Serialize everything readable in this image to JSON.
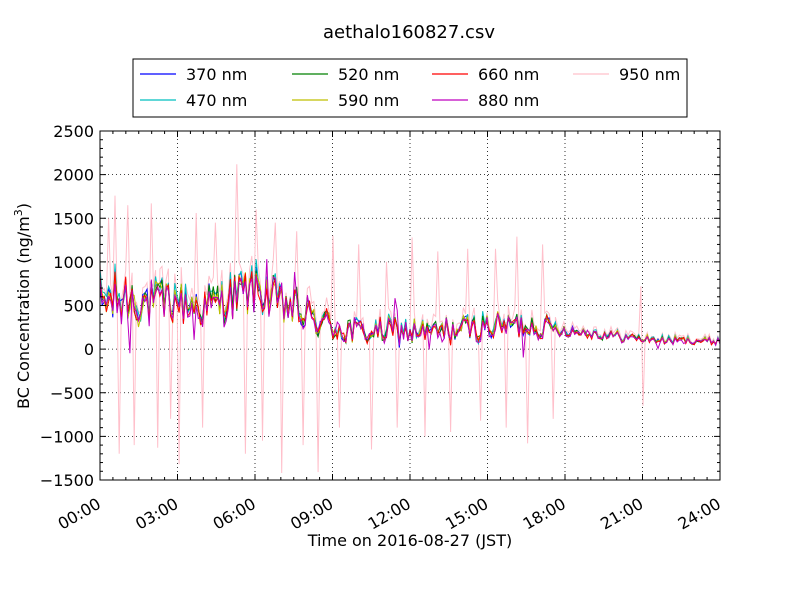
{
  "chart_data": {
    "type": "line",
    "title": "aethalo160827.csv",
    "xlabel": "Time on 2016-08-27 (JST)",
    "ylabel_main": "BC Concentration (ng/m",
    "ylabel_sup": "3",
    "ylabel_close": ")",
    "xlim": [
      "00:00",
      "24:00"
    ],
    "ylim": [
      -1500,
      2500
    ],
    "grid": true,
    "legend_placement": "top-center",
    "x_ticks": [
      "00:00",
      "03:00",
      "06:00",
      "09:00",
      "12:00",
      "15:00",
      "18:00",
      "21:00",
      "24:00"
    ],
    "y_ticks": [
      "2500",
      "2000",
      "1500",
      "1000",
      "500",
      "0",
      "−500",
      "−1000",
      "−1500"
    ],
    "series": [
      {
        "name": "370 nm",
        "color": "#0000ff"
      },
      {
        "name": "470 nm",
        "color": "#00bfbf"
      },
      {
        "name": "520 nm",
        "color": "#008000"
      },
      {
        "name": "590 nm",
        "color": "#bfbf00"
      },
      {
        "name": "660 nm",
        "color": "#ff0000"
      },
      {
        "name": "880 nm",
        "color": "#bf00bf"
      },
      {
        "name": "950 nm",
        "color": "#ffc0cb"
      }
    ],
    "envelope": {
      "hours": [
        0,
        1,
        2,
        3,
        4,
        5,
        6,
        7,
        8,
        9,
        10,
        11,
        12,
        13,
        14,
        15,
        16,
        17,
        18,
        19,
        20,
        21,
        22,
        23,
        24
      ],
      "baseline": [
        550,
        600,
        520,
        560,
        480,
        600,
        700,
        520,
        380,
        260,
        200,
        200,
        200,
        190,
        230,
        260,
        280,
        270,
        220,
        180,
        150,
        120,
        100,
        100,
        90
      ],
      "amplitude": [
        350,
        380,
        320,
        300,
        280,
        300,
        320,
        300,
        260,
        220,
        200,
        190,
        180,
        180,
        180,
        190,
        180,
        170,
        90,
        70,
        70,
        60,
        55,
        55,
        50
      ]
    },
    "pink_spikes": [
      {
        "h": 0.35,
        "v": 1500
      },
      {
        "h": 0.6,
        "v": 1760
      },
      {
        "h": 0.75,
        "v": -1200
      },
      {
        "h": 1.1,
        "v": 1650
      },
      {
        "h": 1.35,
        "v": -1100
      },
      {
        "h": 2.0,
        "v": 1670
      },
      {
        "h": 2.25,
        "v": -1130
      },
      {
        "h": 2.75,
        "v": -800
      },
      {
        "h": 3.1,
        "v": -1320
      },
      {
        "h": 3.7,
        "v": 1560
      },
      {
        "h": 4.0,
        "v": -900
      },
      {
        "h": 4.5,
        "v": 1450
      },
      {
        "h": 5.3,
        "v": 2120
      },
      {
        "h": 5.6,
        "v": -1200
      },
      {
        "h": 6.05,
        "v": 1600
      },
      {
        "h": 6.3,
        "v": -1050
      },
      {
        "h": 6.75,
        "v": 1450
      },
      {
        "h": 7.0,
        "v": -1420
      },
      {
        "h": 7.6,
        "v": 1350
      },
      {
        "h": 7.9,
        "v": -1100
      },
      {
        "h": 8.45,
        "v": -1410
      },
      {
        "h": 9.0,
        "v": 1300
      },
      {
        "h": 9.3,
        "v": -900
      },
      {
        "h": 10.0,
        "v": 1200
      },
      {
        "h": 10.5,
        "v": -1150
      },
      {
        "h": 11.1,
        "v": 1000
      },
      {
        "h": 11.5,
        "v": -900
      },
      {
        "h": 12.1,
        "v": 1280
      },
      {
        "h": 12.6,
        "v": -1000
      },
      {
        "h": 13.1,
        "v": 1120
      },
      {
        "h": 13.6,
        "v": -950
      },
      {
        "h": 14.2,
        "v": 1150
      },
      {
        "h": 14.75,
        "v": -820
      },
      {
        "h": 15.3,
        "v": 1150
      },
      {
        "h": 15.7,
        "v": -900
      },
      {
        "h": 16.15,
        "v": 1290
      },
      {
        "h": 16.55,
        "v": -1080
      },
      {
        "h": 17.1,
        "v": 1200
      },
      {
        "h": 17.55,
        "v": -800
      },
      {
        "h": 20.9,
        "v": 720
      },
      {
        "h": 21.05,
        "v": -650
      }
    ]
  }
}
